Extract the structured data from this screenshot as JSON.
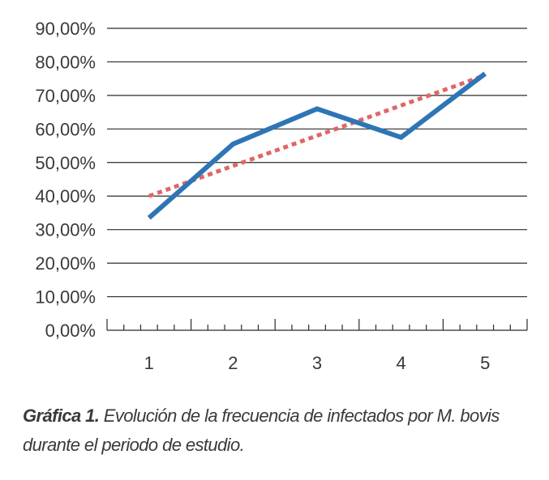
{
  "chart_data": {
    "type": "line",
    "x": [
      1,
      2,
      3,
      4,
      5
    ],
    "categories": [
      "1",
      "2",
      "3",
      "4",
      "5"
    ],
    "series": [
      {
        "values": [
          33.5,
          55.5,
          66.0,
          57.5,
          76.5
        ],
        "color": "#2E75B6",
        "style": "solid"
      },
      {
        "values": [
          40.0,
          49.0,
          58.0,
          67.0,
          76.0
        ],
        "color": "#E06666",
        "style": "dotted",
        "kind": "trendline"
      }
    ],
    "ylim": [
      0,
      90
    ],
    "yticks": [
      "0,00%",
      "10,00%",
      "20,00%",
      "30,00%",
      "40,00%",
      "50,00%",
      "60,00%",
      "70,00%",
      "80,00%",
      "90,00%"
    ],
    "grid": true,
    "gridline_color": "#2b2b2b",
    "xlabel": "",
    "ylabel": ""
  },
  "caption": {
    "lead": "Gráfica 1.",
    "text": " Evolución de la frecuencia de infectados por M. bovis durante el periodo de estudio."
  }
}
